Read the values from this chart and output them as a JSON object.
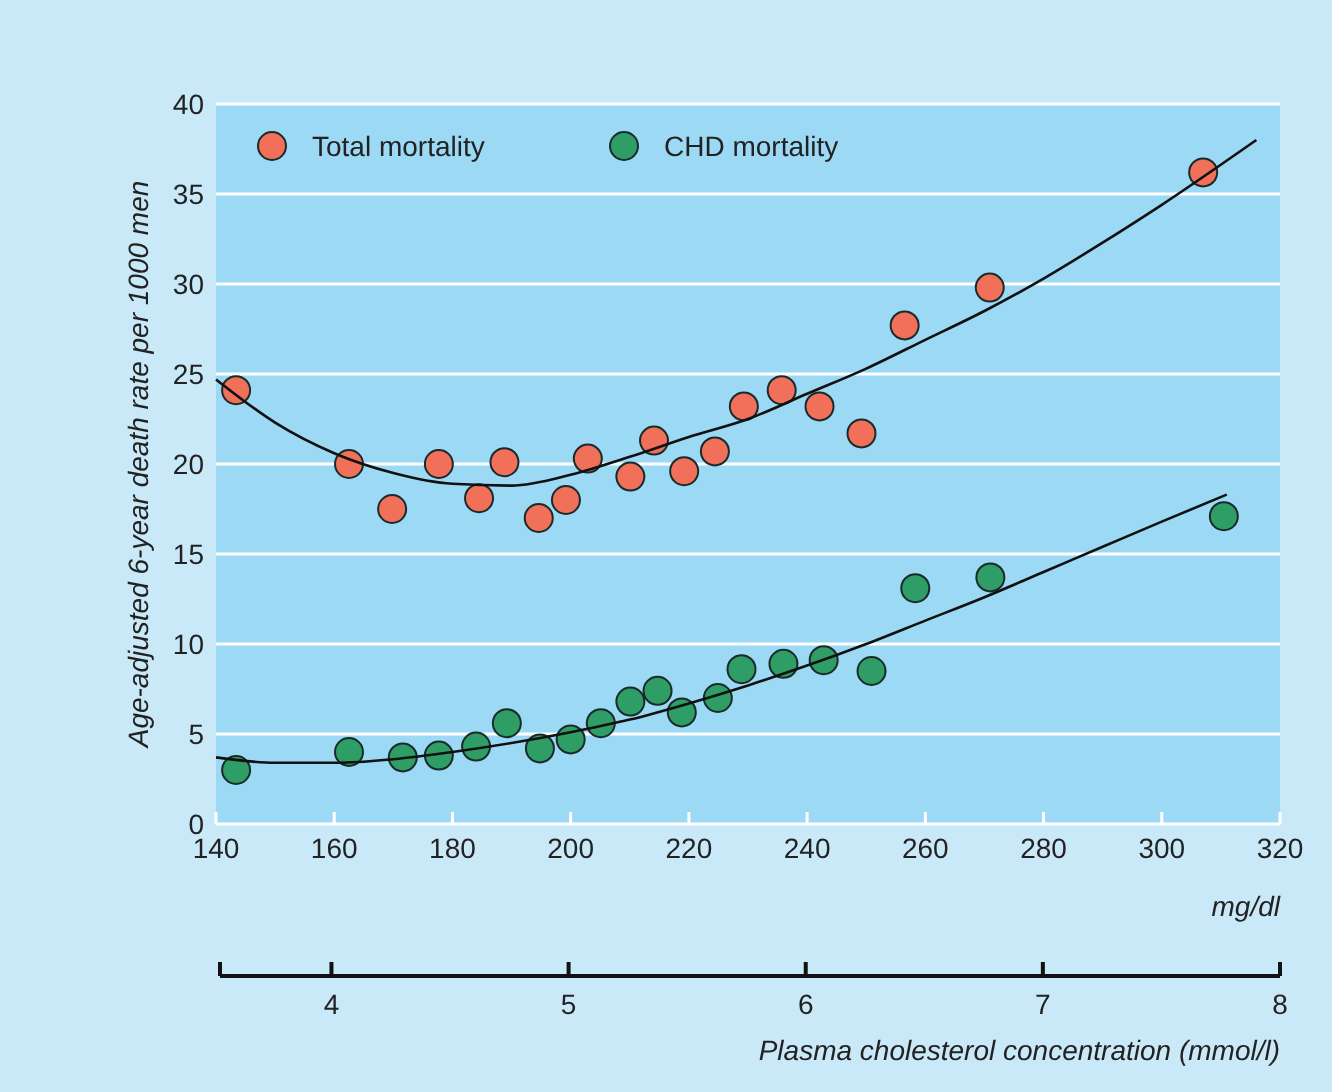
{
  "chart_data": {
    "type": "scatter",
    "ylabel": "Age-adjusted 6-year death rate per 1000 men",
    "xlabel": "mg/dl",
    "x2label": "Plasma cholesterol concentration (mmol/l)",
    "xlim": [
      140,
      320
    ],
    "xticks": [
      140,
      160,
      180,
      200,
      220,
      240,
      260,
      280,
      300,
      320
    ],
    "ylim": [
      0,
      40
    ],
    "yticks": [
      0,
      5,
      10,
      15,
      20,
      25,
      30,
      35,
      40
    ],
    "x2lim": [
      3.53,
      8
    ],
    "x2ticks": [
      4,
      5,
      6,
      7,
      8
    ],
    "grid": "y",
    "legend": "top left",
    "marker": "circle",
    "series": [
      {
        "name": "Total mortality",
        "color": "#f0705a",
        "x": [
          143.4,
          162.5,
          169.8,
          177.7,
          184.5,
          188.8,
          194.6,
          199.2,
          202.9,
          210.1,
          214.1,
          219.2,
          224.4,
          229.3,
          235.7,
          242.1,
          249.2,
          256.5,
          270.9,
          307.0
        ],
        "values": [
          24.1,
          20.0,
          17.5,
          20.0,
          18.1,
          20.1,
          17.0,
          18.0,
          20.3,
          19.3,
          21.3,
          19.6,
          20.7,
          23.2,
          24.1,
          23.2,
          21.7,
          27.7,
          29.8,
          36.2
        ]
      },
      {
        "name": "CHD mortality",
        "color": "#2e9e66",
        "x": [
          143.4,
          162.5,
          171.6,
          177.7,
          184.0,
          189.2,
          194.8,
          200.0,
          205.1,
          210.1,
          214.7,
          218.8,
          224.9,
          228.9,
          236.0,
          242.8,
          250.9,
          258.3,
          271.0,
          310.5
        ],
        "values": [
          3.0,
          4.0,
          3.7,
          3.8,
          4.3,
          5.6,
          4.2,
          4.7,
          5.6,
          6.8,
          7.4,
          6.2,
          7.0,
          8.6,
          8.9,
          9.1,
          8.5,
          13.1,
          13.7,
          17.1
        ]
      },
      {
        "type": "line",
        "marker": "none",
        "color": "#111111",
        "x": [
          140,
          150,
          160,
          170,
          180,
          190,
          200,
          210,
          220,
          230,
          240,
          250,
          260,
          270,
          280,
          290,
          300,
          316
        ],
        "values": [
          24.7,
          22.3,
          20.6,
          19.5,
          18.9,
          18.8,
          19.4,
          20.4,
          21.5,
          22.5,
          23.9,
          25.3,
          26.9,
          28.5,
          30.3,
          32.3,
          34.4,
          38.0
        ]
      },
      {
        "type": "line",
        "marker": "none",
        "color": "#111111",
        "x": [
          140,
          150,
          160,
          170,
          180,
          190,
          200,
          210,
          220,
          230,
          240,
          250,
          260,
          270,
          280,
          290,
          300,
          311
        ],
        "values": [
          3.7,
          3.4,
          3.4,
          3.6,
          4.0,
          4.5,
          5.1,
          5.8,
          6.7,
          7.7,
          8.8,
          10.0,
          11.3,
          12.6,
          14.0,
          15.4,
          16.8,
          18.3
        ]
      }
    ]
  }
}
